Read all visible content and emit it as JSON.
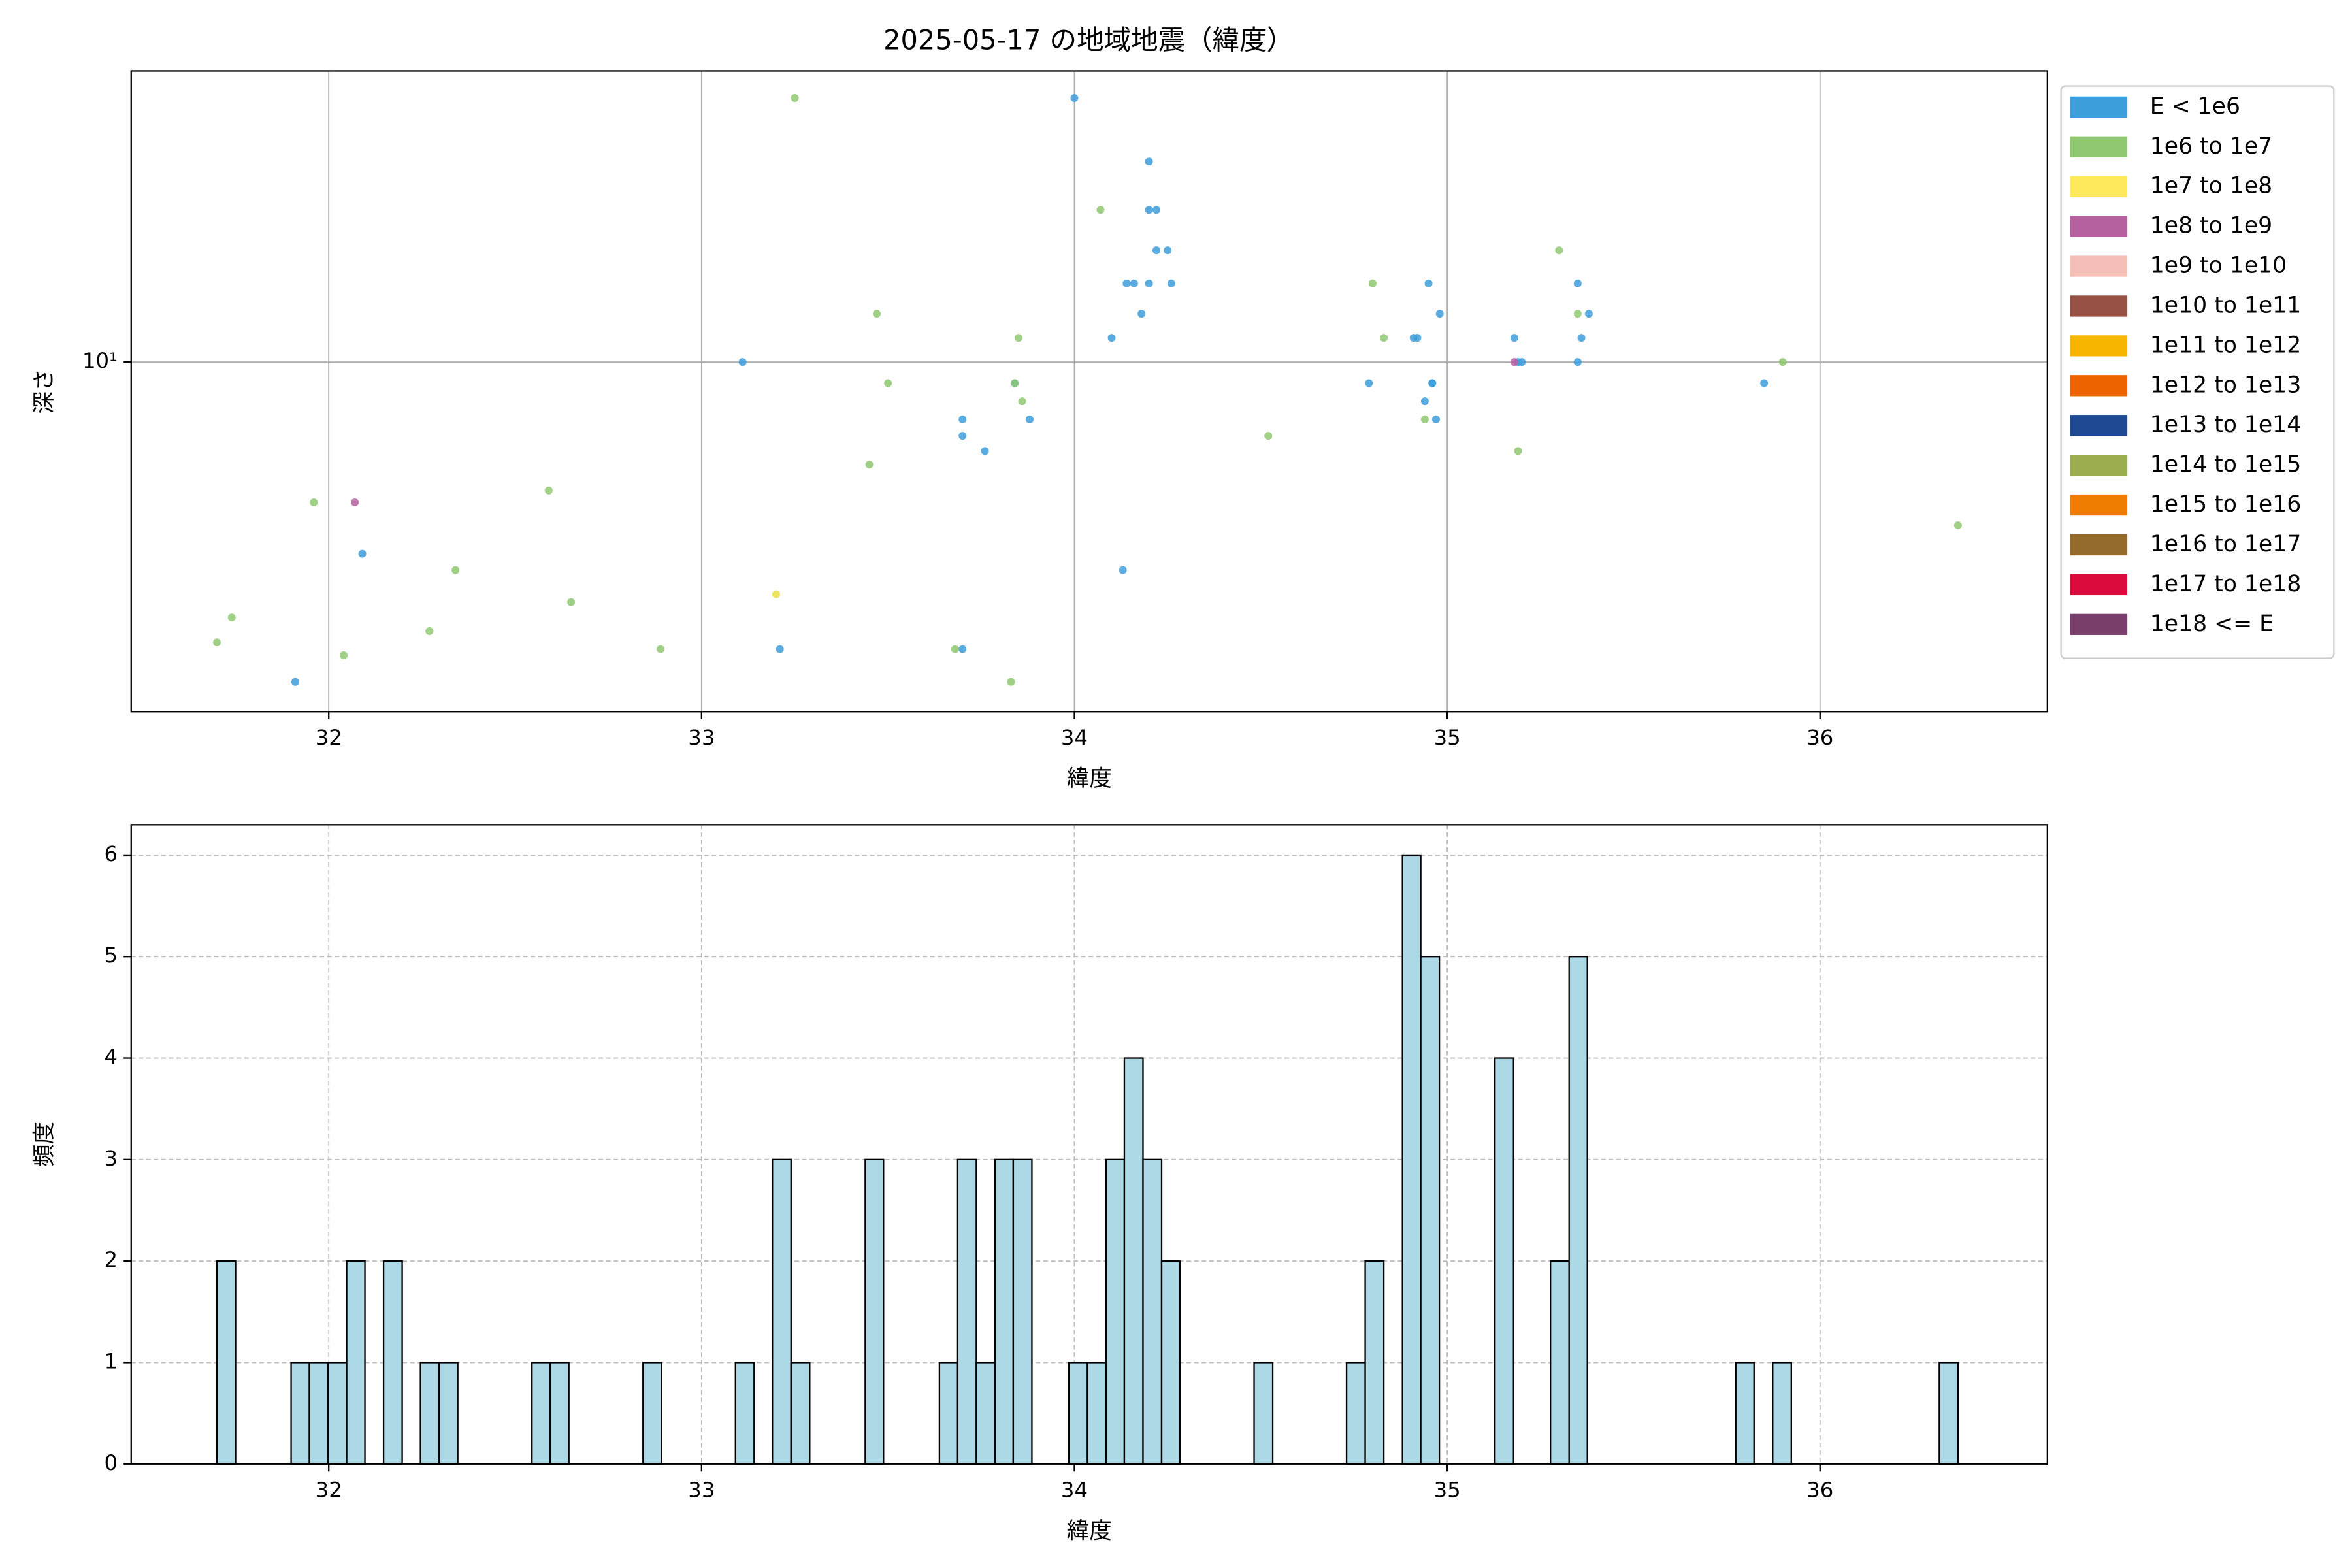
{
  "chart_data": [
    {
      "type": "scatter",
      "title": "2025-05-17 の地域地震（緯度）",
      "xlabel": "緯度",
      "ylabel": "深さ",
      "xlim": [
        31.47,
        36.61
      ],
      "xticks": [
        32,
        33,
        34,
        35,
        36
      ],
      "ylim": [
        1.6,
        46
      ],
      "yscale": "log",
      "yticks": [
        {
          "value": 10,
          "label": "10¹"
        }
      ],
      "grid": true,
      "legend": "right",
      "series": [
        {
          "name": "E < 1e6",
          "color": "#3d9edb",
          "x": [
            31.91,
            32.09,
            33.11,
            33.21,
            33.7,
            33.7,
            33.7,
            33.76,
            33.84,
            33.88,
            34.0,
            34.1,
            34.13,
            34.14,
            34.16,
            34.18,
            34.2,
            34.2,
            34.2,
            34.22,
            34.22,
            34.25,
            34.26,
            34.79,
            34.91,
            34.92,
            34.94,
            34.96,
            34.96,
            34.97,
            34.95,
            34.98,
            35.18,
            35.19,
            35.2,
            35.35,
            35.35,
            35.36,
            35.38,
            35.85
          ],
          "values": [
            1.87,
            3.66,
            10,
            2.22,
            7.4,
            6.79,
            2.22,
            6.27,
            8.95,
            7.4,
            39.9,
            11.35,
            3.36,
            15.1,
            15.1,
            12.88,
            15.1,
            28.6,
            22.2,
            22.2,
            17.96,
            17.96,
            15.1,
            8.95,
            11.35,
            11.35,
            8.14,
            8.95,
            8.95,
            7.4,
            15.1,
            12.88,
            11.35,
            10,
            10,
            10,
            15.1,
            11.35,
            12.88,
            8.95
          ]
        },
        {
          "name": "1e6 to 1e7",
          "color": "#8fc870",
          "x": [
            31.7,
            31.74,
            31.96,
            32.04,
            32.27,
            32.34,
            32.59,
            32.65,
            32.89,
            33.2,
            33.25,
            33.45,
            33.47,
            33.5,
            33.68,
            33.83,
            33.84,
            33.85,
            33.86,
            34.07,
            34.52,
            34.8,
            34.83,
            34.94,
            35.19,
            35.3,
            35.35,
            35.9,
            36.37
          ],
          "values": [
            2.3,
            2.62,
            4.79,
            2.15,
            2.44,
            3.36,
            5.1,
            2.84,
            2.22,
            2.96,
            39.9,
            5.84,
            12.88,
            8.95,
            2.22,
            1.87,
            8.95,
            11.35,
            8.14,
            22.2,
            6.79,
            15.1,
            11.35,
            7.4,
            6.27,
            17.96,
            12.88,
            10,
            4.25
          ]
        },
        {
          "name": "1e7 to 1e8",
          "color": "#fde95b",
          "x": [
            33.2
          ],
          "values": [
            2.96
          ]
        },
        {
          "name": "1e8 to 1e9",
          "color": "#b5609f",
          "x": [
            32.07,
            35.18
          ],
          "values": [
            4.79,
            10
          ]
        },
        {
          "name": "1e9 to 1e10",
          "color": "#f4c0b8",
          "x": [],
          "values": []
        },
        {
          "name": "1e10 to 1e11",
          "color": "#985145",
          "x": [],
          "values": []
        },
        {
          "name": "1e11 to 1e12",
          "color": "#f7b500",
          "x": [],
          "values": []
        },
        {
          "name": "1e12 to 1e13",
          "color": "#ee6500",
          "x": [],
          "values": []
        },
        {
          "name": "1e13 to 1e14",
          "color": "#1e4a93",
          "x": [],
          "values": []
        },
        {
          "name": "1e14 to 1e15",
          "color": "#9aad4f",
          "x": [],
          "values": []
        },
        {
          "name": "1e15 to 1e16",
          "color": "#ef7c00",
          "x": [],
          "values": []
        },
        {
          "name": "1e16 to 1e17",
          "color": "#946b2b",
          "x": [],
          "values": []
        },
        {
          "name": "1e17 to 1e18",
          "color": "#db0a3c",
          "x": [],
          "values": []
        },
        {
          "name": "1e18 <= E",
          "color": "#7a3f6c",
          "x": [],
          "values": []
        }
      ]
    },
    {
      "type": "histogram",
      "xlabel": "緯度",
      "ylabel": "頻度",
      "xlim": [
        31.47,
        36.61
      ],
      "xticks": [
        32,
        33,
        34,
        35,
        36
      ],
      "ylim": [
        0,
        6.3
      ],
      "yticks": [
        0,
        1,
        2,
        3,
        4,
        5,
        6
      ],
      "grid": true,
      "grid_linestyle": "dashed",
      "color": "#add8e6",
      "edgecolor": "#000000",
      "bins": [
        31.7,
        31.75,
        31.799,
        31.849,
        31.899,
        31.948,
        31.998,
        32.048,
        32.097,
        32.147,
        32.197,
        32.246,
        32.296,
        32.346,
        32.396,
        32.445,
        32.495,
        32.545,
        32.594,
        32.644,
        32.694,
        32.743,
        32.793,
        32.843,
        32.892,
        32.942,
        32.992,
        33.041,
        33.091,
        33.141,
        33.19,
        33.24,
        33.29,
        33.339,
        33.389,
        33.439,
        33.488,
        33.538,
        33.588,
        33.638,
        33.687,
        33.737,
        33.787,
        33.836,
        33.886,
        33.936,
        33.985,
        34.035,
        34.085,
        34.134,
        34.184,
        34.234,
        34.283,
        34.333,
        34.383,
        34.432,
        34.482,
        34.532,
        34.581,
        34.631,
        34.681,
        34.73,
        34.78,
        34.83,
        34.88,
        34.929,
        34.979,
        35.029,
        35.078,
        35.128,
        35.178,
        35.227,
        35.277,
        35.327,
        35.376,
        35.426,
        35.476,
        35.525,
        35.575,
        35.625,
        35.674,
        35.724,
        35.774,
        35.823,
        35.873,
        35.923,
        35.972,
        36.022,
        36.072,
        36.121,
        36.171,
        36.221,
        36.27,
        36.32,
        36.37
      ],
      "values": [
        2,
        0,
        0,
        0,
        1,
        1,
        1,
        2,
        0,
        2,
        0,
        1,
        1,
        0,
        0,
        0,
        0,
        1,
        1,
        0,
        0,
        0,
        0,
        1,
        0,
        0,
        0,
        0,
        1,
        0,
        3,
        1,
        0,
        0,
        0,
        3,
        0,
        0,
        0,
        1,
        3,
        1,
        3,
        3,
        0,
        0,
        1,
        1,
        3,
        4,
        3,
        2,
        0,
        0,
        0,
        0,
        1,
        0,
        0,
        0,
        0,
        1,
        2,
        0,
        6,
        5,
        0,
        0,
        0,
        4,
        0,
        0,
        2,
        5,
        0,
        0,
        0,
        0,
        0,
        0,
        0,
        0,
        1,
        0,
        1,
        0,
        0,
        0,
        0,
        0,
        0,
        0,
        0,
        1
      ]
    }
  ]
}
